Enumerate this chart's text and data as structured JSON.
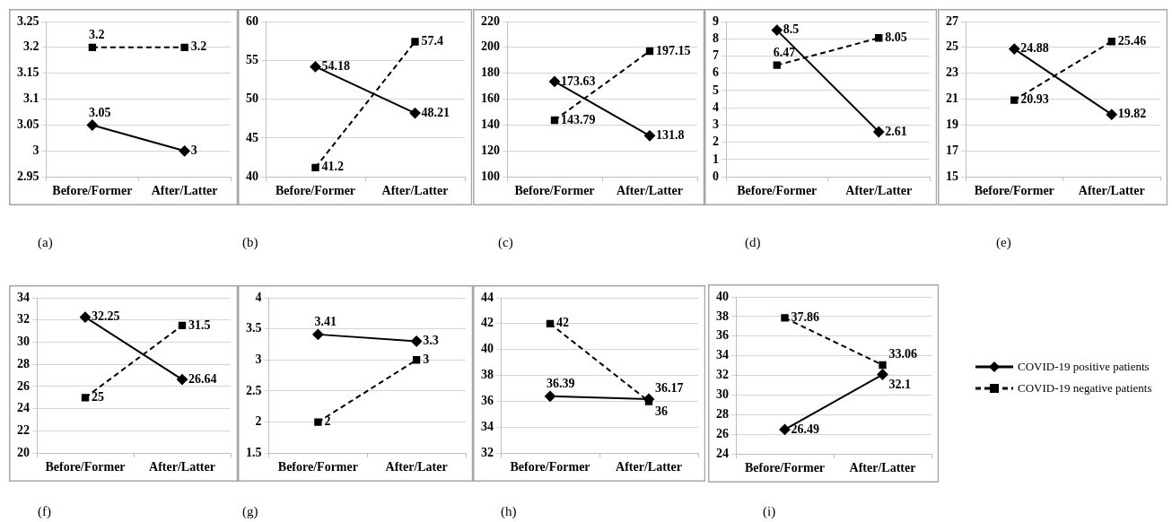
{
  "chart_data": [
    {
      "type": "line",
      "categories": [
        "Before/Former",
        "After/Latter"
      ],
      "ylim": [
        2.95,
        3.25
      ],
      "yticks": [
        2.95,
        3,
        3.05,
        3.1,
        3.15,
        3.2,
        3.25
      ],
      "grid": "y",
      "data_labels": true,
      "legend": false,
      "annotations": [
        "(a)"
      ],
      "series": [
        {
          "color": "#000000",
          "marker": "diamond",
          "line_style": "solid",
          "values": [
            3.05,
            3
          ]
        },
        {
          "color": "#000000",
          "marker": "square",
          "line_style": "dashed",
          "values": [
            3.2,
            3.2
          ]
        }
      ]
    },
    {
      "type": "line",
      "categories": [
        "Before/Former",
        "After/Latter"
      ],
      "ylim": [
        40,
        60
      ],
      "yticks": [
        40,
        45,
        50,
        55,
        60
      ],
      "grid": "y",
      "data_labels": true,
      "legend": false,
      "annotations": [
        "(b)"
      ],
      "series": [
        {
          "color": "#000000",
          "marker": "diamond",
          "line_style": "solid",
          "values": [
            54.18,
            48.21
          ]
        },
        {
          "color": "#000000",
          "marker": "square",
          "line_style": "dashed",
          "values": [
            41.2,
            57.4
          ]
        }
      ]
    },
    {
      "type": "line",
      "categories": [
        "Before/Former",
        "After/Latter"
      ],
      "ylim": [
        100,
        220
      ],
      "yticks": [
        100,
        120,
        140,
        160,
        180,
        200,
        220
      ],
      "grid": "y",
      "data_labels": true,
      "legend": false,
      "annotations": [
        "(c)"
      ],
      "series": [
        {
          "color": "#000000",
          "marker": "diamond",
          "line_style": "solid",
          "values": [
            173.63,
            131.8
          ]
        },
        {
          "color": "#000000",
          "marker": "square",
          "line_style": "dashed",
          "values": [
            143.79,
            197.15
          ]
        }
      ]
    },
    {
      "type": "line",
      "categories": [
        "Before/Former",
        "After/Latter"
      ],
      "ylim": [
        0,
        9
      ],
      "yticks": [
        0,
        1,
        2,
        3,
        4,
        5,
        6,
        7,
        8,
        9
      ],
      "grid": "y",
      "data_labels": true,
      "legend": false,
      "annotations": [
        "(d)"
      ],
      "series": [
        {
          "color": "#000000",
          "marker": "diamond",
          "line_style": "solid",
          "values": [
            8.5,
            2.61
          ]
        },
        {
          "color": "#000000",
          "marker": "square",
          "line_style": "dashed",
          "values": [
            6.47,
            8.05
          ]
        }
      ]
    },
    {
      "type": "line",
      "categories": [
        "Before/Former",
        "After/Latter"
      ],
      "ylim": [
        15,
        27
      ],
      "yticks": [
        15,
        17,
        19,
        21,
        23,
        25,
        27
      ],
      "grid": "y",
      "data_labels": true,
      "legend": false,
      "annotations": [
        "(e)"
      ],
      "series": [
        {
          "color": "#000000",
          "marker": "diamond",
          "line_style": "solid",
          "values": [
            24.88,
            19.82
          ]
        },
        {
          "color": "#000000",
          "marker": "square",
          "line_style": "dashed",
          "values": [
            20.93,
            25.46
          ]
        }
      ]
    },
    {
      "type": "line",
      "categories": [
        "Before/Former",
        "After/Latter"
      ],
      "ylim": [
        20,
        34
      ],
      "yticks": [
        20,
        22,
        24,
        26,
        28,
        30,
        32,
        34
      ],
      "grid": "y",
      "data_labels": true,
      "legend": false,
      "annotations": [
        "(f)"
      ],
      "series": [
        {
          "color": "#000000",
          "marker": "diamond",
          "line_style": "solid",
          "values": [
            32.25,
            26.64
          ]
        },
        {
          "color": "#000000",
          "marker": "square",
          "line_style": "dashed",
          "values": [
            25,
            31.5
          ]
        }
      ]
    },
    {
      "type": "line",
      "categories": [
        "Before/Former",
        "After/Later"
      ],
      "ylim": [
        1.5,
        4
      ],
      "yticks": [
        1.5,
        2,
        2.5,
        3,
        3.5,
        4
      ],
      "grid": "y",
      "data_labels": true,
      "legend": false,
      "annotations": [
        "(g)"
      ],
      "series": [
        {
          "color": "#000000",
          "marker": "diamond",
          "line_style": "solid",
          "values": [
            3.41,
            3.3
          ]
        },
        {
          "color": "#000000",
          "marker": "square",
          "line_style": "dashed",
          "values": [
            2,
            3
          ]
        }
      ]
    },
    {
      "type": "line",
      "categories": [
        "Before/Former",
        "After/Latter"
      ],
      "ylim": [
        32,
        44
      ],
      "yticks": [
        32,
        34,
        36,
        38,
        40,
        42,
        44
      ],
      "grid": "y",
      "data_labels": true,
      "legend": false,
      "annotations": [
        "(h)"
      ],
      "series": [
        {
          "color": "#000000",
          "marker": "diamond",
          "line_style": "solid",
          "values": [
            36.39,
            36.17
          ]
        },
        {
          "color": "#000000",
          "marker": "square",
          "line_style": "dashed",
          "values": [
            42,
            36
          ]
        }
      ]
    },
    {
      "type": "line",
      "categories": [
        "Before/Former",
        "After/Latter"
      ],
      "ylim": [
        24,
        40
      ],
      "yticks": [
        24,
        26,
        28,
        30,
        32,
        34,
        36,
        38,
        40
      ],
      "grid": "y",
      "data_labels": true,
      "legend": "right",
      "annotations": [
        "(i)"
      ],
      "series": [
        {
          "name": "COVID-19 positive patients",
          "color": "#000000",
          "marker": "diamond",
          "line_style": "solid",
          "values": [
            26.49,
            32.1
          ]
        },
        {
          "name": "COVID-19 negative patients",
          "color": "#000000",
          "marker": "square",
          "line_style": "dashed",
          "values": [
            37.86,
            33.06
          ]
        }
      ]
    }
  ]
}
